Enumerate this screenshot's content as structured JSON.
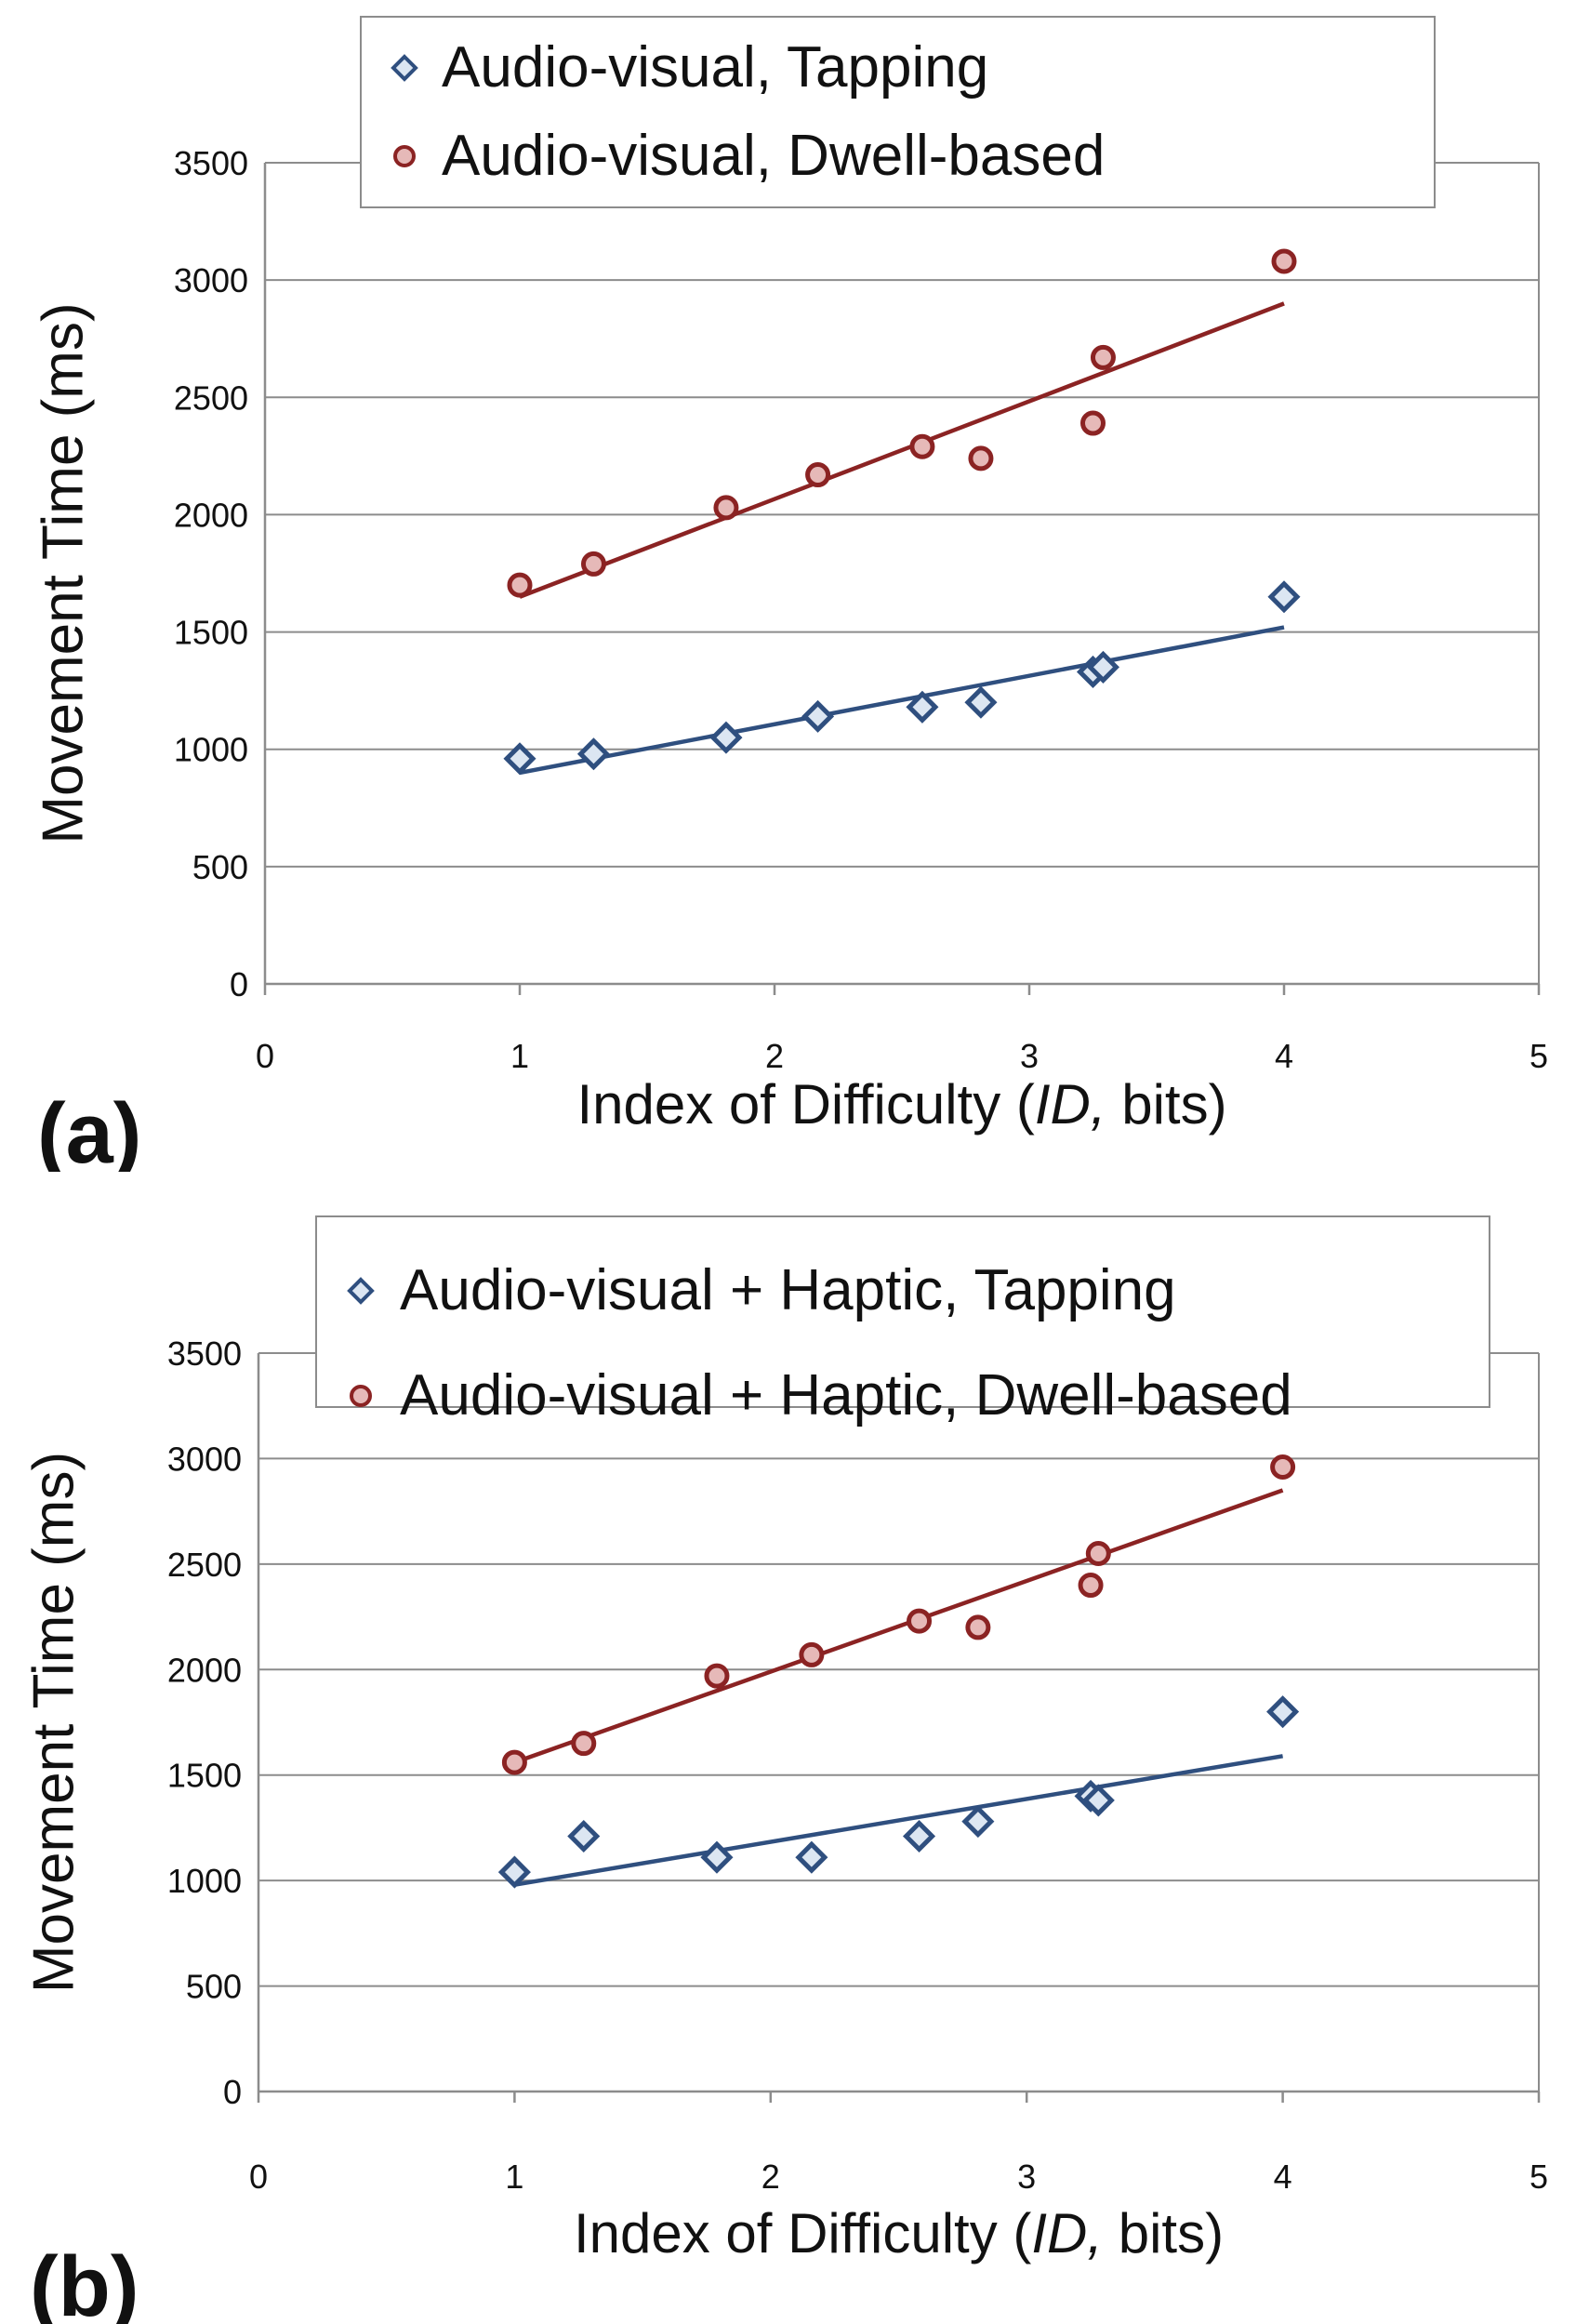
{
  "colors": {
    "tapping": "#2F4F7F",
    "dwell": "#8B2323",
    "tapping_fill": "#DCE6F2",
    "dwell_fill": "#E6B9B8",
    "grid": "#8C8C8C",
    "axis": "#8C8C8C"
  },
  "chart_data": [
    {
      "panel_label": "(a)",
      "type": "scatter",
      "xlabel_main": "Index of Difficulty (",
      "xlabel_italic": "ID,",
      "xlabel_rest": " bits)",
      "ylabel": "Movement Time (ms)",
      "xlim": [
        0,
        5
      ],
      "ylim": [
        0,
        3500
      ],
      "x_ticks": [
        0,
        1,
        2,
        3,
        4,
        5
      ],
      "y_ticks": [
        0,
        500,
        1000,
        1500,
        2000,
        2500,
        3000,
        3500
      ],
      "grid": "horizontal",
      "legend_placement": "top",
      "series": [
        {
          "name": "Audio-visual, Tapping",
          "marker": "diamond",
          "x": [
            1.0,
            1.29,
            1.81,
            2.17,
            2.58,
            2.81,
            3.25,
            3.29,
            4.0
          ],
          "y": [
            960,
            980,
            1050,
            1140,
            1180,
            1200,
            1330,
            1350,
            1650
          ],
          "trendline": {
            "x": [
              1.0,
              4.0
            ],
            "y": [
              900,
              1520
            ]
          }
        },
        {
          "name": "Audio-visual, Dwell-based",
          "marker": "circle",
          "x": [
            1.0,
            1.29,
            1.81,
            2.17,
            2.58,
            2.81,
            3.25,
            3.29,
            4.0
          ],
          "y": [
            1700,
            1790,
            2030,
            2170,
            2290,
            2240,
            2390,
            2670,
            3080
          ],
          "trendline": {
            "x": [
              1.0,
              4.0
            ],
            "y": [
              1650,
              2900
            ]
          }
        }
      ]
    },
    {
      "panel_label": "(b)",
      "type": "scatter",
      "xlabel_main": "Index of Difficulty (",
      "xlabel_italic": "ID,",
      "xlabel_rest": " bits)",
      "ylabel": "Movement Time (ms)",
      "xlim": [
        0,
        5
      ],
      "ylim": [
        0,
        3500
      ],
      "x_ticks": [
        0,
        1,
        2,
        3,
        4,
        5
      ],
      "y_ticks": [
        0,
        500,
        1000,
        1500,
        2000,
        2500,
        3000,
        3500
      ],
      "grid": "horizontal",
      "legend_placement": "top",
      "series": [
        {
          "name": "Audio-visual + Haptic, Tapping",
          "marker": "diamond",
          "x": [
            1.0,
            1.27,
            1.79,
            2.16,
            2.58,
            2.81,
            3.25,
            3.28,
            4.0
          ],
          "y": [
            1040,
            1210,
            1110,
            1110,
            1210,
            1280,
            1400,
            1380,
            1800
          ],
          "trendline": {
            "x": [
              1.0,
              4.0
            ],
            "y": [
              980,
              1590
            ]
          }
        },
        {
          "name": "Audio-visual + Haptic, Dwell-based",
          "marker": "circle",
          "x": [
            1.0,
            1.27,
            1.79,
            2.16,
            2.58,
            2.81,
            3.25,
            3.28,
            4.0
          ],
          "y": [
            1560,
            1650,
            1970,
            2070,
            2230,
            2200,
            2400,
            2550,
            2960
          ],
          "trendline": {
            "x": [
              1.0,
              4.0
            ],
            "y": [
              1560,
              2850
            ]
          }
        }
      ]
    }
  ]
}
